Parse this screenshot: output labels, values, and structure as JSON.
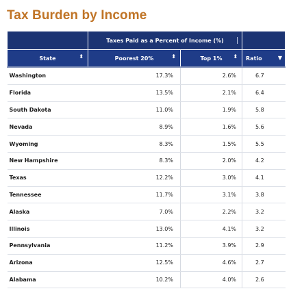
{
  "page": {
    "title": "Tax Burden by Income"
  },
  "table": {
    "group_header": "Taxes Paid as a Percent of Income (%)",
    "columns": [
      {
        "label": "State",
        "sort_icon": "sort-both-icon"
      },
      {
        "label": "Poorest 20%",
        "sort_icon": "sort-both-icon"
      },
      {
        "label": "Top 1%",
        "sort_icon": "sort-both-icon"
      },
      {
        "label": "Ratio",
        "sort_icon": "sort-descending-icon"
      }
    ],
    "rows": [
      {
        "state": "Washington",
        "poorest": "17.3%",
        "top": "2.6%",
        "ratio": "6.7"
      },
      {
        "state": "Florida",
        "poorest": "13.5%",
        "top": "2.1%",
        "ratio": "6.4"
      },
      {
        "state": "South Dakota",
        "poorest": "11.0%",
        "top": "1.9%",
        "ratio": "5.8"
      },
      {
        "state": "Nevada",
        "poorest": "8.9%",
        "top": "1.6%",
        "ratio": "5.6"
      },
      {
        "state": "Wyoming",
        "poorest": "8.3%",
        "top": "1.5%",
        "ratio": "5.5"
      },
      {
        "state": "New Hampshire",
        "poorest": "8.3%",
        "top": "2.0%",
        "ratio": "4.2"
      },
      {
        "state": "Texas",
        "poorest": "12.2%",
        "top": "3.0%",
        "ratio": "4.1"
      },
      {
        "state": "Tennessee",
        "poorest": "11.7%",
        "top": "3.1%",
        "ratio": "3.8"
      },
      {
        "state": "Alaska",
        "poorest": "7.0%",
        "top": "2.2%",
        "ratio": "3.2"
      },
      {
        "state": "Illinois",
        "poorest": "13.0%",
        "top": "4.1%",
        "ratio": "3.2"
      },
      {
        "state": "Pennsylvania",
        "poorest": "11.2%",
        "top": "3.9%",
        "ratio": "2.9"
      },
      {
        "state": "Arizona",
        "poorest": "12.5%",
        "top": "4.6%",
        "ratio": "2.7"
      },
      {
        "state": "Alabama",
        "poorest": "10.2%",
        "top": "4.0%",
        "ratio": "2.6"
      }
    ]
  },
  "colors": {
    "title": "#c07426",
    "header_bg": "#1f3c88",
    "group_bg": "#1c3473"
  }
}
